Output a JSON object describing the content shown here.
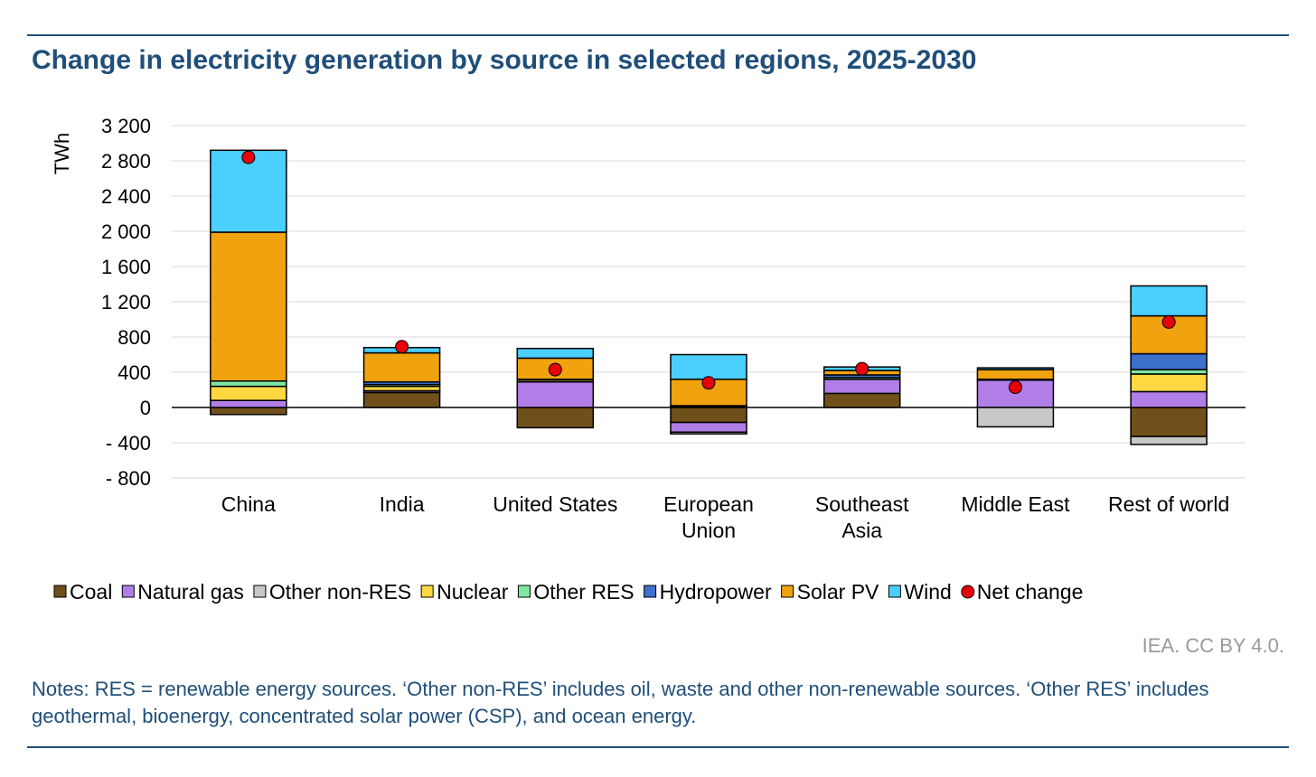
{
  "title": "Change in electricity generation by source in selected regions, 2025-2030",
  "credit": "IEA. CC BY 4.0.",
  "notes": "Notes: RES = renewable energy sources. ‘Other non-RES’ includes oil, waste and other non-renewable sources. ‘Other RES’ includes geothermal, bioenergy, concentrated solar power (CSP), and ocean energy.",
  "chart_data": {
    "type": "bar",
    "stacked": true,
    "title": "Change in electricity generation by source in selected regions, 2025-2030",
    "ylabel": "TWh",
    "xlabel": "",
    "ylim": [
      -800,
      3200
    ],
    "yticks": [
      3200,
      2800,
      2400,
      2000,
      1600,
      1200,
      800,
      400,
      0,
      -400,
      -800
    ],
    "ytick_labels": [
      "3 200",
      "2 800",
      "2 400",
      "2 000",
      "1 600",
      "1 200",
      "800",
      "400",
      "0",
      "- 400",
      "- 800"
    ],
    "grid": true,
    "legend_position": "bottom",
    "categories": [
      [
        "China"
      ],
      [
        "India"
      ],
      [
        "United States"
      ],
      [
        "European",
        "Union"
      ],
      [
        "Southeast",
        "Asia"
      ],
      [
        "Middle East"
      ],
      [
        "Rest of world"
      ]
    ],
    "series": [
      {
        "name": "Coal",
        "color": "#70501a",
        "values": [
          -80,
          170,
          -230,
          -170,
          160,
          0,
          -330
        ]
      },
      {
        "name": "Natural gas",
        "color": "#b17ee8",
        "values": [
          80,
          20,
          290,
          -110,
          160,
          310,
          180
        ]
      },
      {
        "name": "Other non-RES",
        "color": "#c8c8c8",
        "values": [
          0,
          0,
          0,
          -20,
          0,
          -220,
          -90
        ]
      },
      {
        "name": "Nuclear",
        "color": "#ffd740",
        "values": [
          160,
          50,
          20,
          10,
          0,
          0,
          200
        ]
      },
      {
        "name": "Other RES",
        "color": "#7ee8a0",
        "values": [
          60,
          20,
          0,
          10,
          20,
          0,
          50
        ]
      },
      {
        "name": "Hydropower",
        "color": "#3d6fcc",
        "values": [
          0,
          30,
          10,
          0,
          30,
          10,
          180
        ]
      },
      {
        "name": "Solar PV",
        "color": "#f0a20f",
        "values": [
          1690,
          330,
          240,
          300,
          50,
          110,
          430
        ]
      },
      {
        "name": "Wind",
        "color": "#4acfff",
        "values": [
          930,
          60,
          110,
          280,
          40,
          20,
          340
        ]
      }
    ],
    "net_change": {
      "name": "Net change",
      "color": "#e8000a",
      "values": [
        2840,
        690,
        430,
        280,
        440,
        230,
        970
      ]
    }
  }
}
